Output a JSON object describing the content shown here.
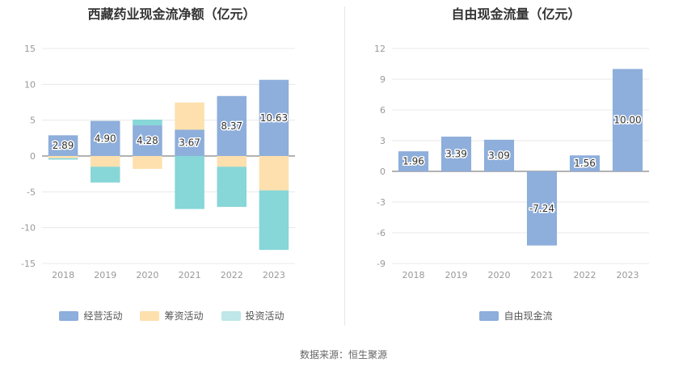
{
  "colors": {
    "operating": "#8eaedb",
    "financing": "#fde0ad",
    "investing": "#87d6d8",
    "free_cash": "#8eaedb",
    "grid": "#e8e8e8",
    "axis_text": "#999999"
  },
  "source": "数据来源：恒生聚源",
  "chart_data": [
    {
      "type": "bar",
      "stacked": true,
      "title": "西藏药业现金流净额（亿元）",
      "categories": [
        "2018",
        "2019",
        "2020",
        "2021",
        "2022",
        "2023"
      ],
      "ylim": [
        -15,
        15
      ],
      "yticks": [
        15,
        10,
        5,
        0,
        -5,
        -10,
        -15
      ],
      "grid": true,
      "legend": "bottom",
      "series": [
        {
          "name": "经营活动",
          "color_key": "operating",
          "values": [
            2.89,
            4.9,
            4.28,
            3.67,
            8.37,
            10.63
          ]
        },
        {
          "name": "筹资活动",
          "color_key": "financing",
          "values": [
            -0.3,
            -1.5,
            -1.8,
            3.8,
            -1.5,
            -4.8
          ]
        },
        {
          "name": "投资活动",
          "color_key": "investing",
          "values": [
            -0.2,
            -2.2,
            0.8,
            -7.4,
            -5.6,
            -8.3
          ]
        }
      ],
      "data_labels": [
        "2.89",
        "4.90",
        "4.28",
        "3.67",
        "8.37",
        "10.63"
      ]
    },
    {
      "type": "bar",
      "title": "自由现金流量（亿元）",
      "categories": [
        "2018",
        "2019",
        "2020",
        "2021",
        "2022",
        "2023"
      ],
      "ylim": [
        -9,
        12
      ],
      "yticks": [
        12,
        9,
        6,
        3,
        0,
        -3,
        -6,
        -9
      ],
      "grid": true,
      "legend": "bottom",
      "series": [
        {
          "name": "自由现金流",
          "color_key": "free_cash",
          "values": [
            1.96,
            3.39,
            3.09,
            -7.24,
            1.56,
            10.0
          ]
        }
      ],
      "data_labels": [
        "1.96",
        "3.39",
        "3.09",
        "-7.24",
        "1.56",
        "10.00"
      ]
    }
  ]
}
